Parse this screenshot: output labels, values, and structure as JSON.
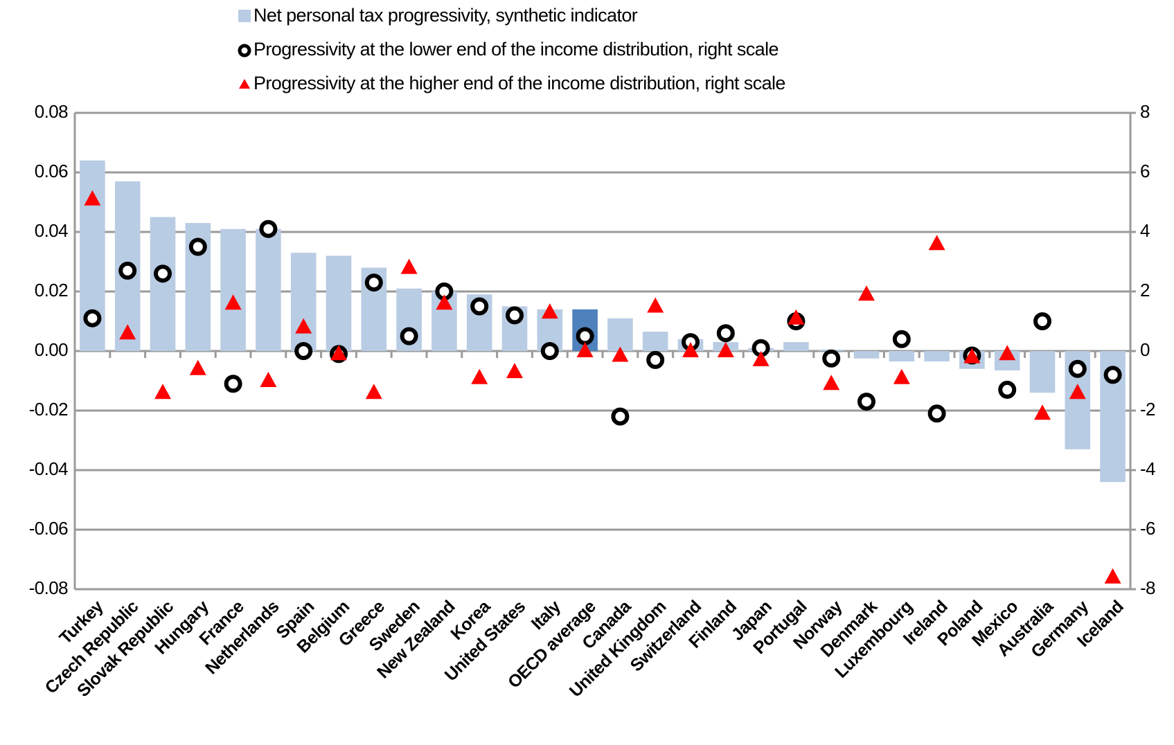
{
  "chart_data": {
    "type": "bar",
    "series": [
      {
        "name": "Net personal tax progressivity, synthetic indicator",
        "color": "#b8cce4",
        "type": "bar",
        "colors": [
          "#b8cce4",
          "#b8cce4",
          "#b8cce4",
          "#b8cce4",
          "#b8cce4",
          "#b8cce4",
          "#b8cce4",
          "#b8cce4",
          "#b8cce4",
          "#b8cce4",
          "#b8cce4",
          "#b8cce4",
          "#b8cce4",
          "#b8cce4",
          "#4f81bd",
          "#b8cce4",
          "#b8cce4",
          "#b8cce4",
          "#b8cce4",
          "#b8cce4",
          "#b8cce4",
          "#b8cce4",
          "#b8cce4",
          "#b8cce4",
          "#b8cce4",
          "#b8cce4",
          "#b8cce4",
          "#b8cce4",
          "#b8cce4",
          "#b8cce4"
        ],
        "values": [
          0.064,
          0.057,
          0.045,
          0.043,
          0.041,
          0.041,
          0.033,
          0.032,
          0.028,
          0.021,
          0.02,
          0.019,
          0.015,
          0.014,
          0.014,
          0.011,
          0.0065,
          0.004,
          0.003,
          0.001,
          0.003,
          0.0005,
          -0.0025,
          -0.0035,
          -0.0035,
          -0.006,
          -0.0065,
          -0.014,
          -0.033,
          -0.044
        ]
      },
      {
        "name": "Progressivity at the lower end of the income distribution, right scale",
        "color": "#000000",
        "type": "circle",
        "axis": "y2",
        "values": [
          1.1,
          2.7,
          2.6,
          3.5,
          -1.1,
          4.1,
          0.0,
          -0.1,
          2.3,
          0.5,
          2.0,
          1.5,
          1.2,
          0.0,
          0.5,
          -2.2,
          -0.3,
          0.3,
          0.6,
          0.1,
          1.0,
          -0.25,
          -1.7,
          0.4,
          -2.1,
          -0.15,
          -1.3,
          1.0,
          -0.6,
          -0.8
        ]
      },
      {
        "name": "Progressivity at the higher end of the income distribution, right scale",
        "color": "#ff0000",
        "type": "triangle",
        "axis": "y2",
        "values": [
          5.1,
          0.6,
          -1.4,
          -0.6,
          1.6,
          -1.0,
          0.8,
          -0.1,
          -1.4,
          2.8,
          1.6,
          -0.9,
          -0.7,
          1.3,
          0.0,
          -0.15,
          1.5,
          0.0,
          0.0,
          -0.3,
          1.1,
          -1.1,
          1.9,
          -0.9,
          3.6,
          -0.2,
          -0.1,
          -2.1,
          -1.4,
          -7.6
        ]
      }
    ],
    "categories": [
      "Turkey",
      "Czech Republic",
      "Slovak Republic",
      "Hungary",
      "France",
      "Netherlands",
      "Spain",
      "Belgium",
      "Greece",
      "Sweden",
      "New Zealand",
      "Korea",
      "United States",
      "Italy",
      "OECD average",
      "Canada",
      "United Kingdom",
      "Switzerland",
      "Finland",
      "Japan",
      "Portugal",
      "Norway",
      "Denmark",
      "Luxembourg",
      "Ireland",
      "Poland",
      "Mexico",
      "Australia",
      "Germany",
      "Iceland"
    ],
    "ylim": [
      -0.08,
      0.08
    ],
    "yticks": [
      -0.08,
      -0.06,
      -0.04,
      -0.02,
      {
        "value": 0,
        "label": "0.00"
      },
      0.02,
      0.04,
      0.06,
      0.08
    ],
    "y2lim": [
      -8,
      8
    ],
    "y2ticks": [
      -8,
      -6,
      -4,
      -2,
      0,
      2,
      4,
      6,
      8
    ],
    "grid": true
  }
}
